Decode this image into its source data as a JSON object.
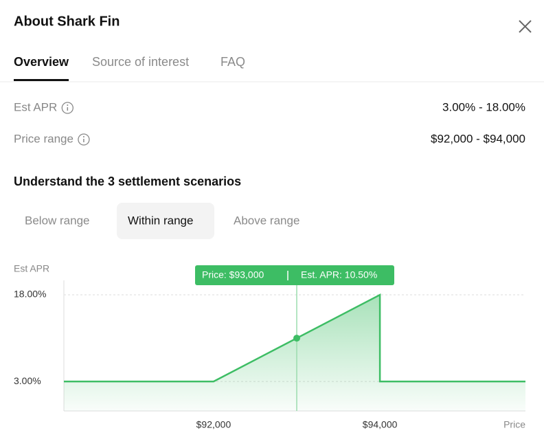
{
  "header": {
    "title": "About Shark Fin"
  },
  "tabs": [
    "Overview",
    "Source of interest",
    "FAQ"
  ],
  "selected_tab": 0,
  "details": [
    {
      "label": "Est APR",
      "value": "3.00% - 18.00%"
    },
    {
      "label": "Price range",
      "value": "$92,000 - $94,000"
    }
  ],
  "section_title": "Understand the 3 settlement scenarios",
  "scenario_tabs": [
    "Below range",
    "Within range",
    "Above range"
  ],
  "selected_scenario": 1,
  "chart_data": {
    "type": "line",
    "y_label": "Est APR",
    "x_label": "Price",
    "x": [
      90200,
      92000,
      94000,
      94000,
      95750
    ],
    "series": [
      {
        "color": "#3dbd64",
        "values": [
          3,
          3,
          18,
          3,
          3
        ]
      }
    ],
    "xlim": [
      90200,
      95750
    ],
    "ylim": [
      -2.1,
      20.5
    ],
    "xticks": [
      {
        "value": 92000,
        "label": "$92,000"
      },
      {
        "value": 94000,
        "label": "$94,000"
      }
    ],
    "yticks": [
      {
        "value": 3,
        "label": "3.00%"
      },
      {
        "value": 18,
        "label": "18.00%"
      }
    ],
    "grid": true,
    "hover": {
      "x": 93000,
      "y": 10.5,
      "price_label": "Price: $93,000",
      "apr_label": "Est. APR: 10.50%"
    }
  }
}
